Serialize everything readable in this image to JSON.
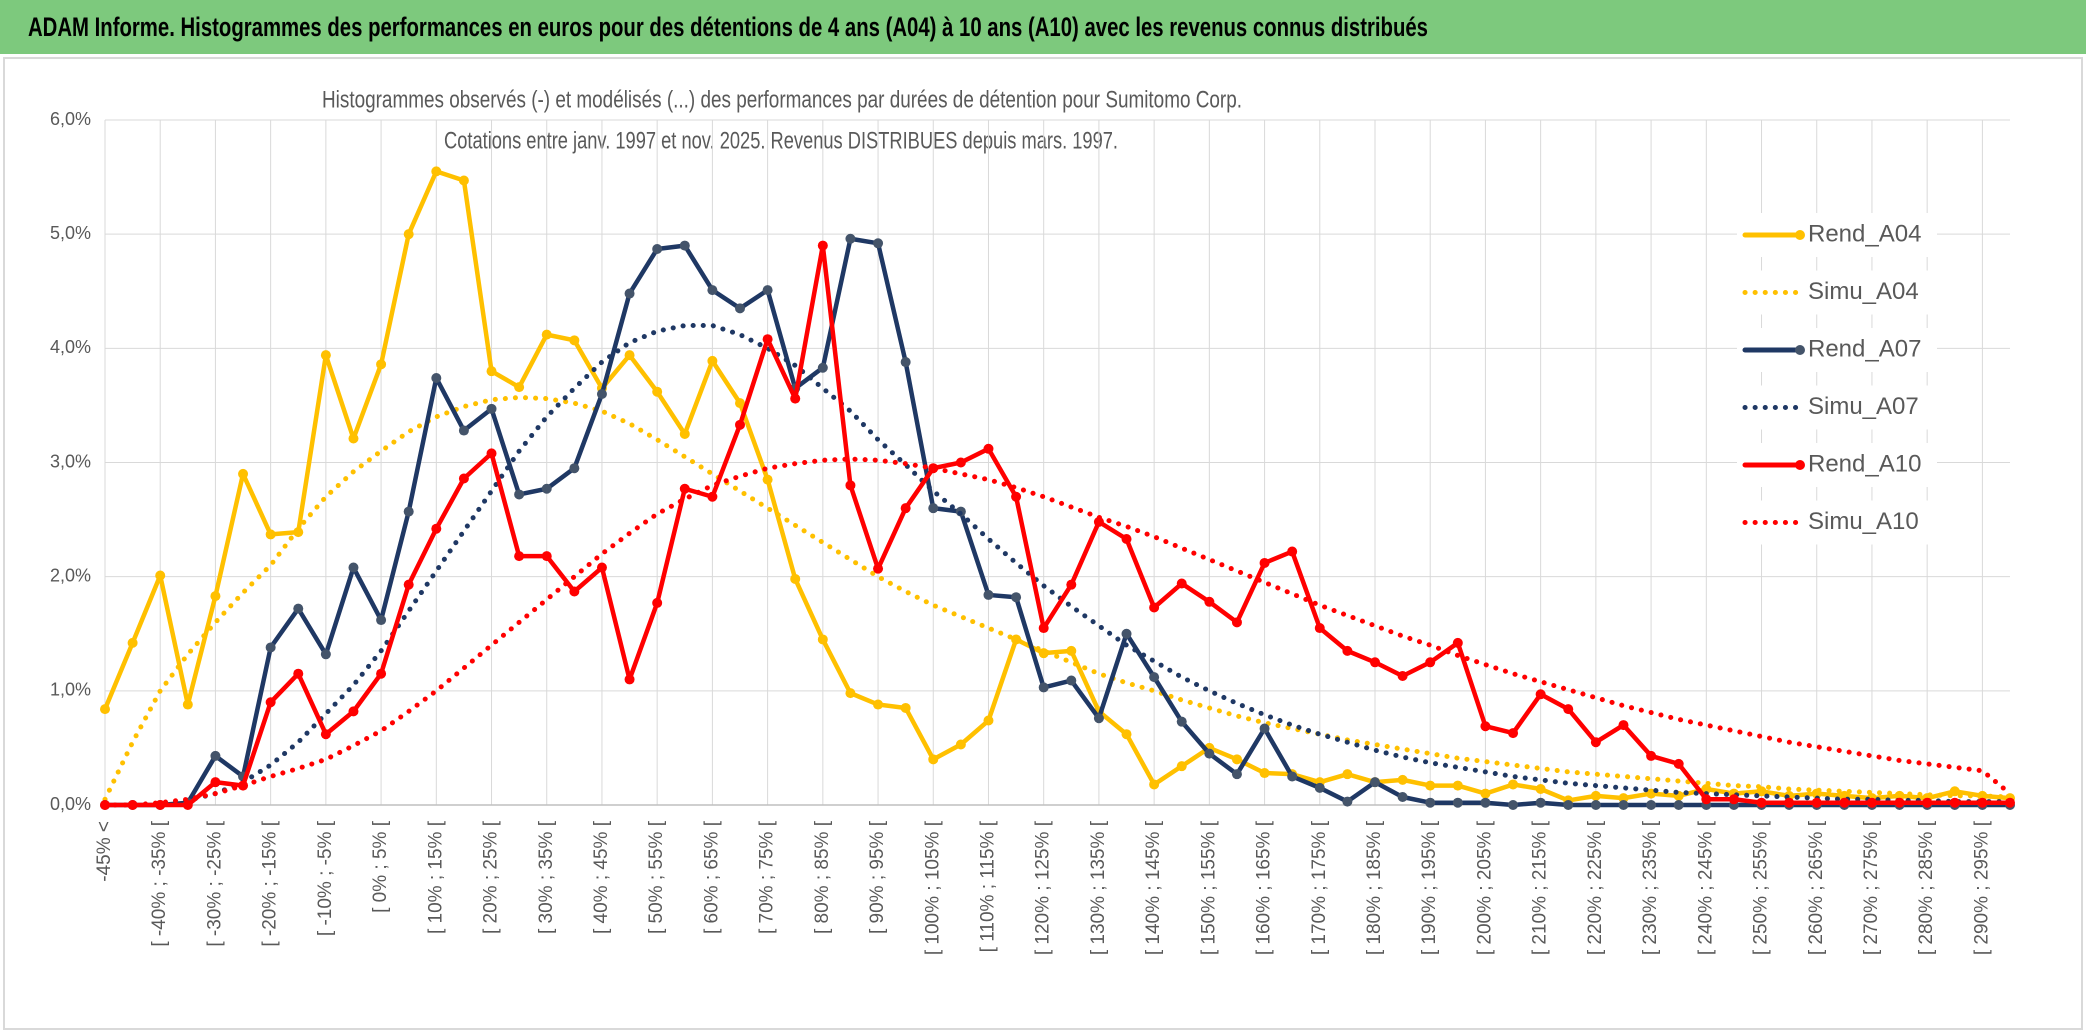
{
  "header": "ADAM Informe. Histogrammes des performances en euros pour des détentions de 4 ans (A04) à 10 ans (A10) avec les revenus connus distribués",
  "chart_data": {
    "type": "line",
    "title": "Histogrammes observés (-) et modélisés (...) des performances par durées de détention pour Sumitomo Corp.",
    "subtitle": "Cotations entre janv. 1997 et nov. 2025. Revenus DISTRIBUES depuis mars. 1997.",
    "categories": [
      "-45% <",
      null,
      "[ -40% ; -35% [",
      null,
      "[ -30% ; -25% [",
      null,
      "[ -20% ; -15% [",
      null,
      "[ -10% ; -5% [",
      null,
      "[ 0% ; 5% [",
      null,
      "[ 10% ; 15% [",
      null,
      "[ 20% ; 25% [",
      null,
      "[ 30% ; 35% [",
      null,
      "[ 40% ; 45% [",
      null,
      "[ 50% ; 55% [",
      null,
      "[ 60% ; 65% [",
      null,
      "[ 70% ; 75% [",
      null,
      "[ 80% ; 85% [",
      null,
      "[ 90% ; 95% [",
      null,
      "[ 100% ; 105% [",
      null,
      "[ 110% ; 115% [",
      null,
      "[ 120% ; 125% [",
      null,
      "[ 130% ; 135% [",
      null,
      "[ 140% ; 145% [",
      null,
      "[ 150% ; 155% [",
      null,
      "[ 160% ; 165% [",
      null,
      "[ 170% ; 175% [",
      null,
      "[ 180% ; 185% [",
      null,
      "[ 190% ; 195% [",
      null,
      "[ 200% ; 205% [",
      null,
      "[ 210% ; 215% [",
      null,
      "[ 220% ; 225% [",
      null,
      "[ 230% ; 235% [",
      null,
      "[ 240% ; 245% [",
      null,
      "[ 250% ; 255% [",
      null,
      "[ 260% ; 265% [",
      null,
      "[ 270% ; 275% [",
      null,
      "[ 280% ; 285% [",
      null,
      "[ 290% ; 295% [",
      null
    ],
    "ylim": [
      0,
      6
    ],
    "yticks": [
      {
        "value": 0,
        "label": "0,0%"
      },
      {
        "value": 1,
        "label": "1,0%"
      },
      {
        "value": 2,
        "label": "2,0%"
      },
      {
        "value": 3,
        "label": "3,0%"
      },
      {
        "value": 4,
        "label": "4,0%"
      },
      {
        "value": 5,
        "label": "5,0%"
      },
      {
        "value": 6,
        "label": "6,0%"
      }
    ],
    "grid": true,
    "legend": "right",
    "series": [
      {
        "name": "Rend_A04",
        "color": "#ffc000",
        "style": "solid",
        "values": [
          0.84,
          1.42,
          2.01,
          0.88,
          1.83,
          2.9,
          2.37,
          2.39,
          3.94,
          3.21,
          3.86,
          5.0,
          5.55,
          5.47,
          3.8,
          3.66,
          4.12,
          4.07,
          3.65,
          3.94,
          3.62,
          3.25,
          3.89,
          3.52,
          2.85,
          1.98,
          1.45,
          0.98,
          0.88,
          0.85,
          0.4,
          0.53,
          0.74,
          1.45,
          1.33,
          1.35,
          0.82,
          0.62,
          0.18,
          0.34,
          0.5,
          0.4,
          0.28,
          0.27,
          0.2,
          0.27,
          0.2,
          0.22,
          0.17,
          0.17,
          0.1,
          0.18,
          0.14,
          0.04,
          0.08,
          0.06,
          0.1,
          0.08,
          0.14,
          0.1,
          0.12,
          0.08,
          0.1,
          0.08,
          0.06,
          0.08,
          0.06,
          0.12,
          0.08,
          0.06
        ]
      },
      {
        "name": "Simu_A04",
        "color": "#ffc000",
        "style": "dotted",
        "values": [
          0.05,
          0.55,
          1.0,
          1.32,
          1.6,
          1.86,
          2.1,
          2.42,
          2.7,
          2.92,
          3.1,
          3.27,
          3.4,
          3.49,
          3.55,
          3.57,
          3.56,
          3.52,
          3.45,
          3.34,
          3.2,
          3.05,
          2.9,
          2.75,
          2.6,
          2.45,
          2.3,
          2.15,
          2.0,
          1.87,
          1.75,
          1.65,
          1.55,
          1.45,
          1.35,
          1.25,
          1.15,
          1.07,
          1.0,
          0.92,
          0.85,
          0.78,
          0.72,
          0.67,
          0.62,
          0.57,
          0.53,
          0.49,
          0.45,
          0.41,
          0.38,
          0.35,
          0.32,
          0.29,
          0.27,
          0.25,
          0.23,
          0.21,
          0.19,
          0.17,
          0.16,
          0.14,
          0.13,
          0.12,
          0.11,
          0.1,
          0.09,
          0.08,
          0.08,
          0.07
        ]
      },
      {
        "name": "Rend_A07",
        "color": "#1f3864",
        "style": "solid",
        "values": [
          0,
          0,
          0,
          0.02,
          0.43,
          0.25,
          1.38,
          1.72,
          1.32,
          2.08,
          1.62,
          2.57,
          3.74,
          3.28,
          3.47,
          2.72,
          2.77,
          2.95,
          3.6,
          4.48,
          4.87,
          4.9,
          4.51,
          4.35,
          4.51,
          3.65,
          3.83,
          4.96,
          4.92,
          3.88,
          2.6,
          2.57,
          1.84,
          1.82,
          1.03,
          1.09,
          0.76,
          1.5,
          1.12,
          0.73,
          0.45,
          0.27,
          0.67,
          0.25,
          0.15,
          0.03,
          0.2,
          0.07,
          0.02,
          0.02,
          0.02,
          0,
          0.02,
          0,
          0,
          0,
          0,
          0,
          0,
          0,
          0,
          0,
          0,
          0,
          0,
          0,
          0,
          0,
          0,
          0
        ]
      },
      {
        "name": "Simu_A07",
        "color": "#1f3864",
        "style": "dotted",
        "values": [
          0,
          0,
          0.01,
          0.04,
          0.1,
          0.2,
          0.35,
          0.55,
          0.8,
          1.05,
          1.35,
          1.7,
          2.05,
          2.4,
          2.75,
          3.1,
          3.4,
          3.65,
          3.88,
          4.05,
          4.15,
          4.2,
          4.2,
          4.12,
          4.0,
          3.85,
          3.65,
          3.45,
          3.2,
          2.98,
          2.75,
          2.55,
          2.33,
          2.12,
          1.92,
          1.74,
          1.57,
          1.4,
          1.26,
          1.12,
          1.0,
          0.89,
          0.79,
          0.7,
          0.62,
          0.55,
          0.48,
          0.42,
          0.37,
          0.33,
          0.29,
          0.25,
          0.22,
          0.19,
          0.17,
          0.15,
          0.13,
          0.11,
          0.1,
          0.09,
          0.08,
          0.07,
          0.06,
          0.05,
          0.05,
          0.04,
          0.04,
          0.03,
          0.03,
          0.03
        ]
      },
      {
        "name": "Rend_A10",
        "color": "#ff0000",
        "style": "solid",
        "values": [
          0,
          0,
          0,
          0,
          0.2,
          0.17,
          0.9,
          1.15,
          0.62,
          0.82,
          1.15,
          1.93,
          2.42,
          2.86,
          3.08,
          2.18,
          2.18,
          1.87,
          2.08,
          1.1,
          1.77,
          2.77,
          2.7,
          3.33,
          4.08,
          3.56,
          4.9,
          2.8,
          2.07,
          2.6,
          2.95,
          3.0,
          3.12,
          2.7,
          1.55,
          1.93,
          2.48,
          2.33,
          1.73,
          1.94,
          1.78,
          1.6,
          2.12,
          2.22,
          1.55,
          1.35,
          1.25,
          1.13,
          1.25,
          1.42,
          0.69,
          0.63,
          0.97,
          0.84,
          0.55,
          0.7,
          0.43,
          0.36,
          0.05,
          0.05,
          0.02,
          0.02,
          0.02,
          0.02,
          0.02,
          0.02,
          0.02,
          0.02,
          0.02,
          0.02
        ]
      },
      {
        "name": "Simu_A10",
        "color": "#ff0000",
        "style": "dotted",
        "values": [
          0,
          0,
          0.02,
          0.05,
          0.1,
          0.17,
          0.25,
          0.32,
          0.4,
          0.52,
          0.65,
          0.82,
          1.0,
          1.2,
          1.4,
          1.6,
          1.8,
          2.0,
          2.2,
          2.38,
          2.55,
          2.68,
          2.8,
          2.88,
          2.95,
          2.99,
          3.02,
          3.03,
          3.02,
          2.99,
          2.95,
          2.9,
          2.85,
          2.78,
          2.7,
          2.61,
          2.52,
          2.44,
          2.35,
          2.25,
          2.15,
          2.05,
          1.95,
          1.85,
          1.75,
          1.66,
          1.57,
          1.48,
          1.4,
          1.31,
          1.23,
          1.15,
          1.08,
          1.01,
          0.94,
          0.87,
          0.81,
          0.75,
          0.7,
          0.65,
          0.6,
          0.55,
          0.51,
          0.47,
          0.43,
          0.39,
          0.36,
          0.33,
          0.3,
          0.1
        ]
      }
    ]
  }
}
